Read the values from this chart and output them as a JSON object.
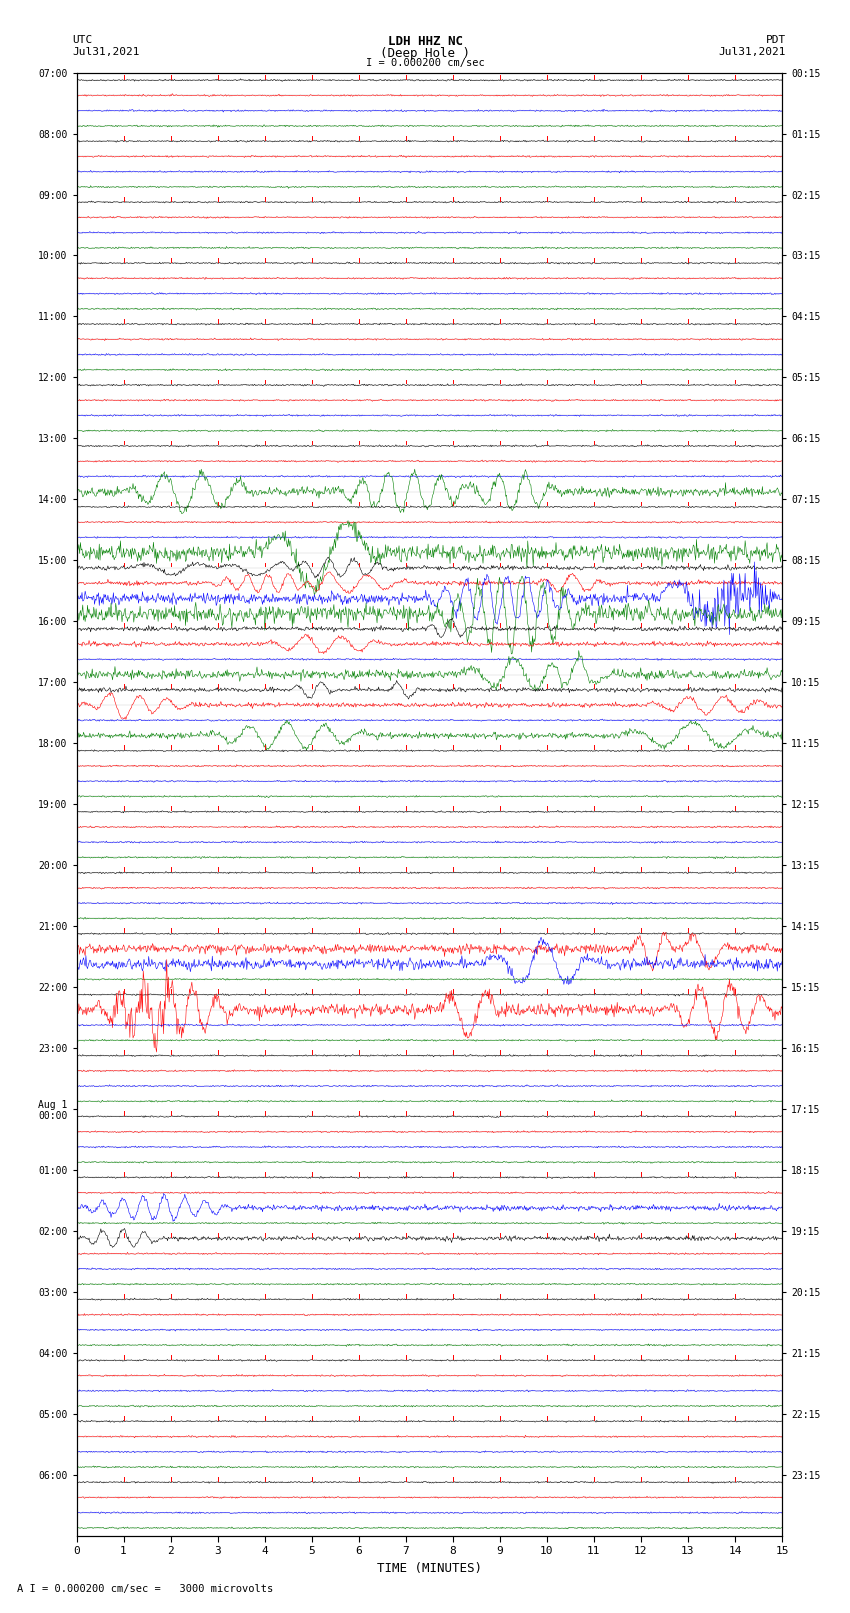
{
  "title_line1": "LDH HHZ NC",
  "title_line2": "(Deep Hole )",
  "scale_label": "I = 0.000200 cm/sec",
  "bottom_label": "A I = 0.000200 cm/sec =   3000 microvolts",
  "xlabel": "TIME (MINUTES)",
  "left_timezone": "UTC",
  "left_date": "Jul31,2021",
  "right_timezone": "PDT",
  "right_date": "Jul31,2021",
  "fig_width": 8.5,
  "fig_height": 16.13,
  "bg_color": "white",
  "line_color": "#cccccc",
  "noise_seed": 42,
  "colors": [
    "black",
    "red",
    "blue",
    "green"
  ],
  "num_hour_groups": 24,
  "traces_in_group": 4,
  "num_points": 900,
  "left_labels_utc": [
    "07:00",
    "08:00",
    "09:00",
    "10:00",
    "11:00",
    "12:00",
    "13:00",
    "14:00",
    "15:00",
    "16:00",
    "17:00",
    "18:00",
    "19:00",
    "20:00",
    "21:00",
    "22:00",
    "23:00",
    "Aug 1\n00:00",
    "01:00",
    "02:00",
    "03:00",
    "04:00",
    "05:00",
    "06:00"
  ],
  "right_labels_pdt": [
    "00:15",
    "01:15",
    "02:15",
    "03:15",
    "04:15",
    "05:15",
    "06:15",
    "07:15",
    "08:15",
    "09:15",
    "10:15",
    "11:15",
    "12:15",
    "13:15",
    "14:15",
    "15:15",
    "16:15",
    "17:15",
    "18:15",
    "19:15",
    "20:15",
    "21:15",
    "22:15",
    "23:15"
  ]
}
